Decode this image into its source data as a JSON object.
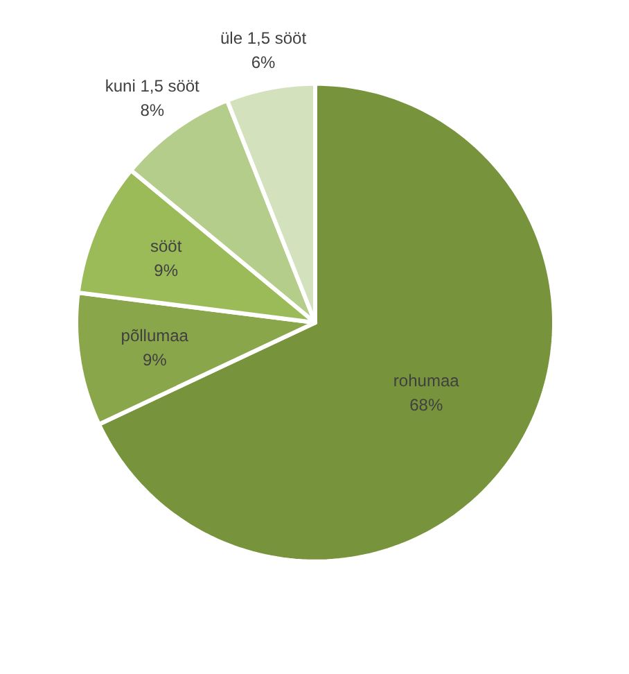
{
  "chart_data": {
    "type": "pie",
    "categories": [
      "rohumaa",
      "põllumaa",
      "sööt",
      "kuni 1,5 sööt",
      "üle 1,5 sööt"
    ],
    "values": [
      68,
      9,
      9,
      8,
      6
    ],
    "value_labels": [
      "68%",
      "9%",
      "9%",
      "8%",
      "6%"
    ],
    "colors": [
      "#77933c",
      "#8aa64a",
      "#9bbb59",
      "#b5cd8a",
      "#d3e1bd"
    ]
  }
}
